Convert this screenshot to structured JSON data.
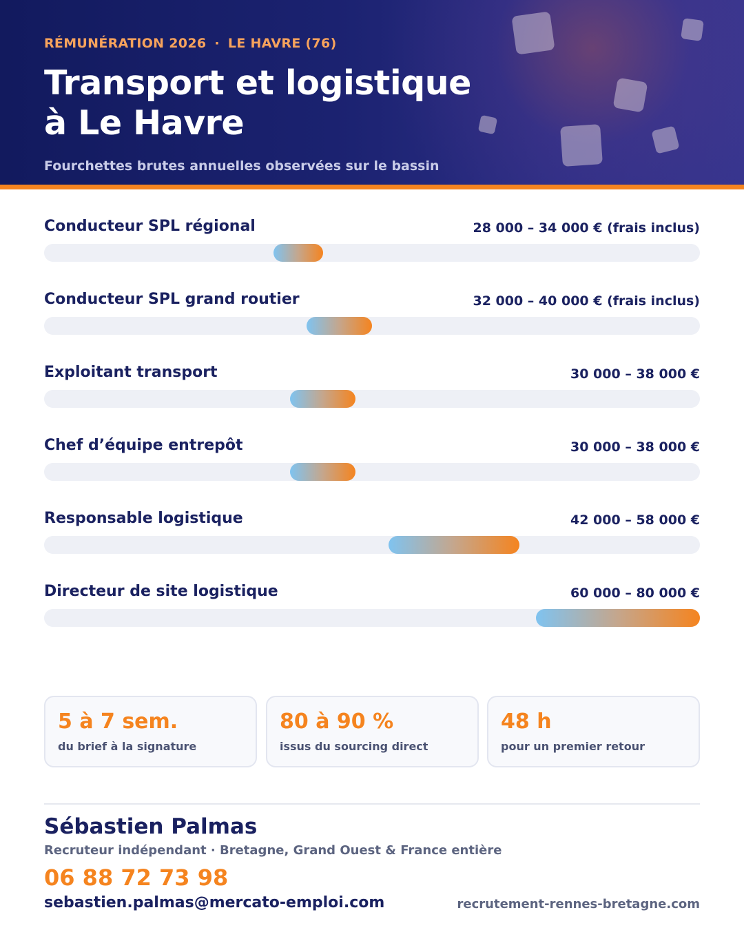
{
  "header": {
    "eyebrow_left": "RÉMUNÉRATION 2026",
    "eyebrow_separator": "·",
    "eyebrow_right": "LE HAVRE (76)",
    "title_line1": "Transport et logistique",
    "title_line2": "à Le Havre",
    "subtitle": "Fourchettes brutes annuelles observées sur le bassin"
  },
  "scale": {
    "min": 0,
    "max": 80000
  },
  "salaries": [
    {
      "title": "Conducteur SPL régional",
      "range": "28 000 – 34 000 € (frais inclus)",
      "min": 28000,
      "max": 34000
    },
    {
      "title": "Conducteur SPL grand routier",
      "range": "32 000 – 40 000 € (frais inclus)",
      "min": 32000,
      "max": 40000
    },
    {
      "title": "Exploitant transport",
      "range": "30 000 – 38 000 €",
      "min": 30000,
      "max": 38000
    },
    {
      "title": "Chef d’équipe entrepôt",
      "range": "30 000 – 38 000 €",
      "min": 30000,
      "max": 38000
    },
    {
      "title": "Responsable logistique",
      "range": "42 000 – 58 000 €",
      "min": 42000,
      "max": 58000
    },
    {
      "title": "Directeur de site logistique",
      "range": "60 000 – 80 000 €",
      "min": 60000,
      "max": 80000
    }
  ],
  "stats": [
    {
      "value": "5 à 7 sem.",
      "label": "du brief à la signature"
    },
    {
      "value": "80 à 90 %",
      "label": "issus du sourcing direct"
    },
    {
      "value": "48 h",
      "label": "pour un premier retour"
    }
  ],
  "contact": {
    "name": "Sébastien Palmas",
    "role": "Recruteur indépendant · Bretagne, Grand Ouest & France entière",
    "phone": "06 88 72 73 98",
    "email": "sebastien.palmas@mercato-emploi.com",
    "website": "recrutement-rennes-bretagne.com"
  },
  "colors": {
    "navy": "#1a2160",
    "accent": "#f5841f",
    "eyebrow": "#f7a35c",
    "bar_start": "#7fc3f0",
    "bar_end": "#f5841f",
    "track": "#eef0f6"
  }
}
